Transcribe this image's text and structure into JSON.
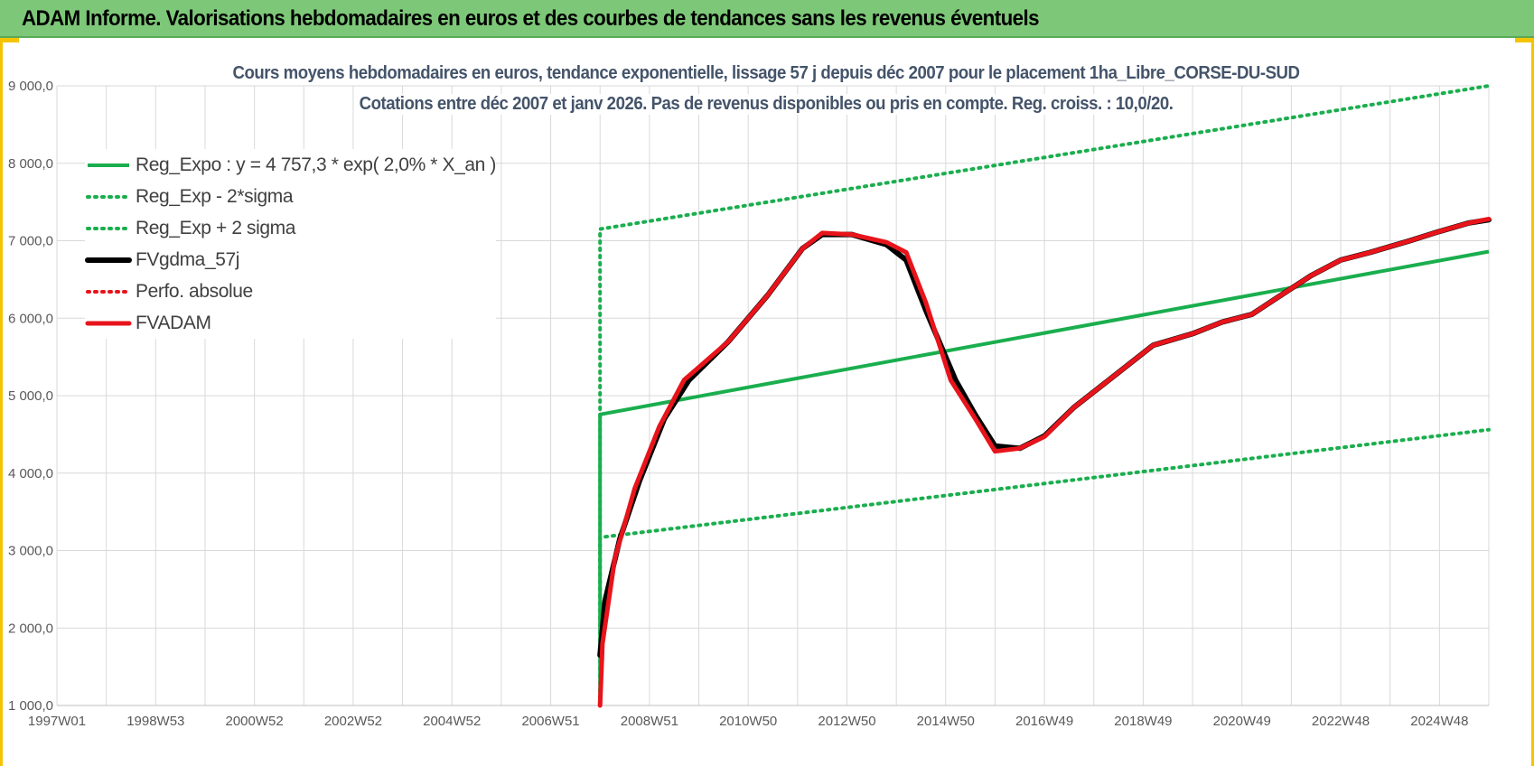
{
  "header": {
    "title": "ADAM Informe. Valorisations hebdomadaires en euros et des courbes de tendances sans les revenus éventuels"
  },
  "colors": {
    "header_bg": "#7dc878",
    "frame": "#f5c400",
    "green": "#1aae4e",
    "black": "#000000",
    "red": "#e8141b",
    "grid": "#d9d9d9"
  },
  "chart_data": {
    "type": "line",
    "title": "Cours moyens hebdomadaires en euros, tendance exponentielle, lissage 57 j depuis déc 2007 pour le placement 1ha_Libre_CORSE-DU-SUD",
    "subtitle": "Cotations entre déc 2007 et janv 2026. Pas de revenus disponibles ou pris en compte. Reg. croiss. : 10,0/20.",
    "xlabel": "",
    "ylabel": "",
    "xlim": [
      1997.0,
      2026.0
    ],
    "ylim": [
      1000,
      9000
    ],
    "y_ticks": [
      1000,
      2000,
      3000,
      4000,
      5000,
      6000,
      7000,
      8000,
      9000
    ],
    "y_tick_labels": [
      "1 000,0",
      "2 000,0",
      "3 000,0",
      "4 000,0",
      "5 000,0",
      "6 000,0",
      "7 000,0",
      "8 000,0",
      "9 000,0"
    ],
    "x_ticks": [
      1997.0,
      1999.0,
      2001.0,
      2003.0,
      2005.0,
      2007.0,
      2009.0,
      2011.0,
      2013.0,
      2015.0,
      2017.0,
      2019.0,
      2021.0,
      2023.0,
      2025.0
    ],
    "x_tick_labels": [
      "1997W01",
      "1998W53",
      "2000W52",
      "2002W52",
      "2004W52",
      "2006W51",
      "2008W51",
      "2010W50",
      "2012W50",
      "2014W50",
      "2016W49",
      "2018W49",
      "2020W49",
      "2022W48",
      "2024W48"
    ],
    "grid": true,
    "legend_position": "top-left",
    "series": [
      {
        "name": "Reg_Expo : y = 4 757,3 * exp( 2,0% *  X_an )",
        "color": "#1aae4e",
        "style": "solid",
        "x": [
          2008.0,
          2008.0,
          2026.0
        ],
        "y": [
          1000,
          4757,
          6860
        ]
      },
      {
        "name": "Reg_Exp - 2*sigma",
        "color": "#1aae4e",
        "style": "dotted",
        "x": [
          2008.0,
          2008.0,
          2026.0
        ],
        "y": [
          1000,
          3170,
          4560
        ]
      },
      {
        "name": "Reg_Exp + 2 sigma",
        "color": "#1aae4e",
        "style": "dotted",
        "x": [
          2008.0,
          2008.0,
          2026.0
        ],
        "y": [
          1000,
          7150,
          9000
        ]
      },
      {
        "name": "FVgdma_57j",
        "color": "#000000",
        "style": "solid",
        "x": [
          2008.0,
          2008.1,
          2008.4,
          2008.8,
          2009.3,
          2009.8,
          2010.6,
          2011.4,
          2012.1,
          2012.5,
          2013.1,
          2013.8,
          2014.2,
          2014.6,
          2015.2,
          2015.6,
          2016.0,
          2016.5,
          2017.0,
          2017.6,
          2018.4,
          2019.2,
          2020.0,
          2020.6,
          2021.2,
          2021.8,
          2022.4,
          2023.0,
          2023.6,
          2024.4,
          2025.0,
          2025.6,
          2026.0
        ],
        "y": [
          1650,
          2350,
          3150,
          3900,
          4700,
          5200,
          5700,
          6300,
          6900,
          7080,
          7080,
          6950,
          6750,
          6100,
          5200,
          4750,
          4350,
          4320,
          4480,
          4850,
          5250,
          5650,
          5800,
          5950,
          6050,
          6300,
          6550,
          6750,
          6850,
          7000,
          7120,
          7230,
          7270
        ]
      },
      {
        "name": "Perfo. absolue",
        "color": "#e8141b",
        "style": "dotted",
        "x": [],
        "y": []
      },
      {
        "name": "FVADAM",
        "color": "#e8141b",
        "style": "solid",
        "x": [
          2008.0,
          2008.05,
          2008.3,
          2008.7,
          2009.2,
          2009.7,
          2010.6,
          2011.4,
          2012.1,
          2012.5,
          2013.1,
          2013.8,
          2014.2,
          2014.6,
          2015.1,
          2015.6,
          2016.0,
          2016.5,
          2017.0,
          2017.6,
          2018.4,
          2019.2,
          2020.0,
          2020.6,
          2021.2,
          2021.8,
          2022.4,
          2023.0,
          2023.6,
          2024.4,
          2025.0,
          2025.6,
          2026.0
        ],
        "y": [
          1000,
          1800,
          2900,
          3800,
          4600,
          5200,
          5700,
          6300,
          6900,
          7100,
          7080,
          6980,
          6850,
          6200,
          5200,
          4700,
          4280,
          4320,
          4470,
          4850,
          5250,
          5650,
          5800,
          5950,
          6050,
          6300,
          6550,
          6750,
          6850,
          7000,
          7120,
          7230,
          7280
        ]
      }
    ]
  }
}
